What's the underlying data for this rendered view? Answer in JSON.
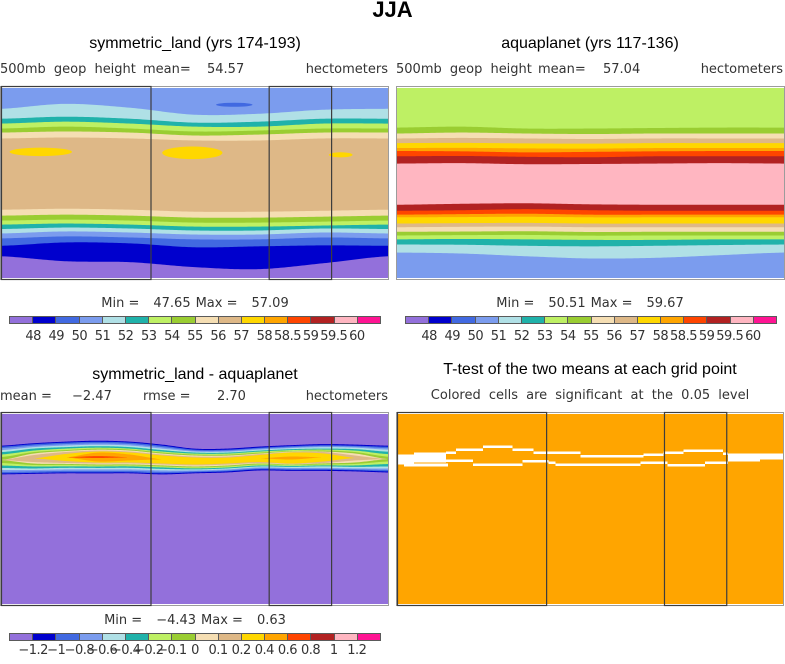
{
  "figure": {
    "title": "JJA"
  },
  "palette": [
    "#9370DB",
    "#0000CD",
    "#4169E1",
    "#7B9CEE",
    "#B0E0E6",
    "#20B2AA",
    "#BEF064",
    "#9ACD32",
    "#F5DEB3",
    "#DEB887",
    "#FFD700",
    "#FFA500",
    "#FF4500",
    "#B22222",
    "#FFB6C1",
    "#FF1493"
  ],
  "chart_data": [
    {
      "type": "heatmap",
      "title": "symmetric_land (yrs 174-193)",
      "variable": "500mb geop height",
      "mean_label": "mean=",
      "mean_value": "54.57",
      "units": "hectometers",
      "min_label": "Min =",
      "min_value": "47.65",
      "max_label": "Max =",
      "max_value": "57.09",
      "xlabel": "",
      "ylabel": "",
      "xlim": [
        0,
        360
      ],
      "ylim": [
        -90,
        90
      ],
      "colorbar": {
        "color_indices": [
          0,
          1,
          2,
          3,
          4,
          5,
          6,
          7,
          8,
          9,
          10,
          11,
          12,
          13,
          14,
          15
        ],
        "labels": [
          "48",
          "49",
          "50",
          "51",
          "52",
          "53",
          "54",
          "55",
          "56",
          "57",
          "58",
          "58.5",
          "59",
          "59.5",
          "60"
        ]
      },
      "land_boxes_lon": [
        [
          0,
          140
        ],
        [
          249,
          308
        ]
      ],
      "contour_bands": {
        "lon_samples": [
          0,
          60,
          120,
          180,
          240,
          300,
          360
        ],
        "band_color_indices": [
          3,
          4,
          5,
          6,
          7,
          8,
          9,
          8,
          7,
          6,
          5,
          4,
          3,
          2,
          1,
          0
        ],
        "boundaries_lat": [
          [
            70.3,
            75.0,
            71.3,
            64.7,
            65.6,
            69.4,
            70.3
          ],
          [
            60.9,
            62.8,
            60.9,
            57.2,
            58.1,
            60.9,
            60.9
          ],
          [
            56.3,
            58.1,
            56.3,
            53.4,
            53.4,
            56.3,
            56.3
          ],
          [
            51.6,
            53.4,
            51.6,
            48.8,
            49.7,
            51.6,
            51.6
          ],
          [
            47.8,
            48.8,
            47.8,
            45.0,
            45.9,
            47.8,
            47.8
          ],
          [
            42.2,
            43.1,
            42.2,
            40.3,
            40.3,
            42.2,
            42.2
          ],
          [
            -25.3,
            -24.4,
            -25.3,
            -27.2,
            -27.2,
            -26.3,
            -25.3
          ],
          [
            -30.9,
            -30.0,
            -30.9,
            -32.8,
            -32.8,
            -31.9,
            -30.9
          ],
          [
            -35.6,
            -34.7,
            -35.6,
            -37.5,
            -37.5,
            -36.6,
            -35.6
          ],
          [
            -39.4,
            -38.4,
            -39.4,
            -41.3,
            -41.3,
            -40.3,
            -39.4
          ],
          [
            -43.6,
            -42.2,
            -43.1,
            -45.0,
            -45.0,
            -43.1,
            -43.6
          ],
          [
            -47.8,
            -45.9,
            -46.9,
            -48.8,
            -48.8,
            -46.9,
            -47.8
          ],
          [
            -52.5,
            -50.6,
            -51.6,
            -53.4,
            -53.4,
            -51.6,
            -52.5
          ],
          [
            -59.5,
            -56.3,
            -57.2,
            -60.9,
            -60.0,
            -59.1,
            -59.5
          ],
          [
            -69.4,
            -74.1,
            -75.0,
            -79.7,
            -81.6,
            -76.0,
            -69.4
          ]
        ]
      },
      "blobs": [
        {
          "color_index": 2,
          "lon": 217,
          "lat": 74.1,
          "rlon": 17,
          "rlat": 1.9
        },
        {
          "color_index": 10,
          "lon": 37,
          "lat": 29.5,
          "rlon": 29,
          "rlat": 4.0
        },
        {
          "color_index": 10,
          "lon": 178,
          "lat": 28.6,
          "rlon": 28,
          "rlat": 6.0
        },
        {
          "color_index": 10,
          "lon": 316,
          "lat": 26.7,
          "rlon": 11,
          "rlat": 2.4
        }
      ]
    },
    {
      "type": "heatmap",
      "title": "aquaplanet (yrs 117-136)",
      "variable": "500mb geop height",
      "mean_label": "mean=",
      "mean_value": "57.04",
      "units": "hectometers",
      "min_label": "Min =",
      "min_value": "50.51",
      "max_label": "Max =",
      "max_value": "59.67",
      "xlabel": "",
      "ylabel": "",
      "xlim": [
        0,
        360
      ],
      "ylim": [
        -90,
        90
      ],
      "colorbar": {
        "color_indices": [
          0,
          1,
          2,
          3,
          4,
          5,
          6,
          7,
          8,
          9,
          10,
          11,
          12,
          13,
          14,
          15
        ],
        "labels": [
          "48",
          "49",
          "50",
          "51",
          "52",
          "53",
          "54",
          "55",
          "56",
          "57",
          "58",
          "58.5",
          "59",
          "59.5",
          "60"
        ]
      },
      "contour_bands": {
        "lon_samples": [
          0,
          60,
          120,
          180,
          240,
          300,
          360
        ],
        "band_color_indices": [
          6,
          7,
          8,
          9,
          10,
          11,
          12,
          13,
          14,
          13,
          12,
          11,
          10,
          9,
          8,
          7,
          6,
          5,
          4,
          3
        ],
        "boundaries_lat": [
          [
            52.5,
            53.4,
            51.6,
            51.6,
            52.1,
            52.5,
            52.5
          ],
          [
            46.9,
            47.8,
            46.9,
            46.4,
            46.9,
            46.9,
            46.9
          ],
          [
            42.2,
            42.7,
            42.2,
            41.7,
            42.2,
            42.2,
            42.2
          ],
          [
            37.8,
            38.0,
            37.5,
            37.3,
            37.8,
            37.8,
            37.8
          ],
          [
            33.1,
            33.3,
            32.8,
            32.6,
            33.1,
            33.1,
            33.1
          ],
          [
            30.3,
            30.0,
            29.0,
            29.5,
            30.0,
            30.3,
            30.3
          ],
          [
            25.3,
            25.6,
            24.8,
            24.4,
            25.3,
            25.3,
            25.3
          ],
          [
            18.4,
            18.8,
            17.8,
            18.0,
            18.4,
            18.8,
            18.4
          ],
          [
            -20.6,
            -19.7,
            -19.2,
            -20.2,
            -20.6,
            -20.6,
            -20.6
          ],
          [
            -26.3,
            -25.8,
            -24.8,
            -25.8,
            -26.3,
            -26.3,
            -26.3
          ],
          [
            -30.0,
            -29.5,
            -29.1,
            -30.0,
            -30.0,
            -30.0,
            -30.0
          ],
          [
            -32.5,
            -32.3,
            -32.0,
            -32.5,
            -32.5,
            -32.5,
            -32.5
          ],
          [
            -38.4,
            -38.0,
            -37.8,
            -38.4,
            -38.4,
            -38.4,
            -38.4
          ],
          [
            -41.9,
            -41.5,
            -41.3,
            -41.9,
            -41.9,
            -41.9,
            -41.9
          ],
          [
            -46.2,
            -46.0,
            -45.7,
            -46.4,
            -46.2,
            -46.2,
            -46.2
          ],
          [
            -49.7,
            -49.4,
            -49.2,
            -49.9,
            -49.7,
            -49.7,
            -49.7
          ],
          [
            -53.4,
            -53.0,
            -53.4,
            -53.9,
            -53.9,
            -53.4,
            -53.4
          ],
          [
            -58.3,
            -58.5,
            -59.5,
            -60.0,
            -59.5,
            -58.8,
            -58.3
          ],
          [
            -65.9,
            -66.8,
            -69.4,
            -71.5,
            -70.9,
            -68.4,
            -65.9
          ]
        ]
      }
    },
    {
      "type": "heatmap",
      "title": "symmetric_land - aquaplanet",
      "mean_label": "mean =",
      "mean_value": "−2.47",
      "rmse_label": "rmse =",
      "rmse_value": "2.70",
      "units": "hectometers",
      "min_label": "Min =",
      "min_value": "−4.43",
      "max_label": "Max =",
      "max_value": "0.63",
      "xlabel": "",
      "ylabel": "",
      "xlim": [
        0,
        360
      ],
      "ylim": [
        -90,
        90
      ],
      "colorbar": {
        "color_indices": [
          0,
          1,
          2,
          3,
          4,
          5,
          6,
          7,
          8,
          9,
          10,
          11,
          12,
          13,
          14,
          15
        ],
        "labels": [
          "−1.2",
          "−1",
          "−0.8",
          "−0.6",
          "−0.4",
          "−0.2",
          "−0.1",
          "0",
          "0.1",
          "0.2",
          "0.4",
          "0.6",
          "0.8",
          "1",
          "1.2"
        ]
      },
      "land_boxes_lon": [
        [
          0,
          140
        ],
        [
          249,
          308
        ]
      ],
      "ridge": {
        "lon_samples": [
          0,
          30,
          60,
          90,
          120,
          150,
          180,
          210,
          240,
          270,
          300,
          330,
          360
        ],
        "background_color_index": 0,
        "center_lat": [
          46.4,
          47.8,
          48.8,
          49.2,
          48.8,
          46.9,
          45.5,
          45.9,
          47.8,
          48.3,
          48.8,
          48.3,
          47.3
        ],
        "levels": [
          {
            "above": -1.2,
            "color_index": 1,
            "half_width_lat": [
              13.6,
              14.5,
              15.0,
              15.5,
              15.0,
              14.1,
              11.7,
              11.3,
              11.3,
              12.2,
              12.7,
              12.7,
              12.7
            ]
          },
          {
            "above": -1.0,
            "color_index": 2,
            "half_width_lat": [
              12.7,
              13.6,
              14.1,
              14.5,
              14.1,
              13.1,
              10.8,
              10.3,
              10.3,
              11.3,
              11.7,
              11.7,
              11.7
            ]
          },
          {
            "above": -0.8,
            "color_index": 3,
            "half_width_lat": [
              11.3,
              12.2,
              12.7,
              13.1,
              12.7,
              11.7,
              9.8,
              9.4,
              9.4,
              10.3,
              10.8,
              10.8,
              10.3
            ]
          },
          {
            "above": -0.6,
            "color_index": 4,
            "half_width_lat": [
              9.4,
              10.8,
              11.3,
              11.7,
              11.3,
              10.3,
              8.9,
              8.4,
              8.4,
              9.4,
              9.8,
              9.8,
              8.9
            ]
          },
          {
            "above": -0.4,
            "color_index": 5,
            "half_width_lat": [
              7.5,
              9.4,
              9.8,
              10.3,
              9.8,
              8.9,
              8.0,
              7.5,
              7.5,
              8.4,
              8.4,
              8.4,
              7.0
            ]
          },
          {
            "above": -0.2,
            "color_index": 6,
            "half_width_lat": [
              5.2,
              7.5,
              8.4,
              8.9,
              8.4,
              7.5,
              7.0,
              6.6,
              6.6,
              7.5,
              7.5,
              7.0,
              4.7
            ]
          },
          {
            "above": -0.1,
            "color_index": 7,
            "half_width_lat": [
              2.8,
              6.1,
              7.0,
              8.0,
              7.5,
              6.6,
              6.1,
              5.6,
              5.6,
              6.6,
              6.6,
              5.6,
              2.3
            ]
          },
          {
            "above": 0,
            "color_index": 8,
            "half_width_lat": [
              0,
              4.7,
              6.1,
              7.0,
              6.6,
              5.6,
              5.2,
              4.7,
              4.7,
              6.1,
              5.6,
              4.2,
              0
            ]
          },
          {
            "above": 0.1,
            "color_index": 9,
            "half_width_lat": [
              0,
              3.3,
              5.2,
              6.1,
              5.6,
              4.7,
              4.2,
              3.8,
              4.2,
              5.6,
              5.2,
              2.3,
              0
            ]
          },
          {
            "above": 0.2,
            "color_index": 10,
            "half_width_lat": [
              0,
              0,
              3.3,
              5.2,
              4.7,
              3.8,
              3.3,
              2.8,
              3.3,
              5.2,
              3.8,
              0,
              0
            ]
          },
          {
            "above": 0.4,
            "color_index": 11,
            "half_width_lat": [
              0,
              0,
              0,
              4.2,
              2.8,
              0,
              0,
              0,
              0,
              1.4,
              0,
              0,
              0
            ]
          },
          {
            "above": 0.6,
            "color_index": 12,
            "half_width_lat": [
              0,
              0,
              0,
              0.9,
              0,
              0,
              0,
              0,
              0,
              0,
              0,
              0,
              0
            ]
          }
        ]
      }
    },
    {
      "type": "heatmap",
      "title": "T-test of the two means at each grid point",
      "subtitle": "Colored cells are significant at the 0.05 level",
      "xlabel": "",
      "ylabel": "",
      "xlim": [
        0,
        360
      ],
      "ylim": [
        -90,
        90
      ],
      "significant_color": "#FFA500",
      "not_significant_color": "#FFFFFF",
      "land_boxes_lon": [
        [
          0,
          140
        ],
        [
          249,
          308
        ]
      ],
      "not_significant_cells": [
        [
          0,
          15.8,
          51.6,
          42.2
        ],
        [
          15.8,
          45.6,
          53.4,
          44.1
        ],
        [
          45.6,
          54.9,
          54.4,
          52.0
        ],
        [
          54.9,
          80.0,
          57.2,
          54.8
        ],
        [
          80.0,
          107.9,
          60.0,
          57.7
        ],
        [
          107.9,
          127.4,
          57.2,
          54.8
        ],
        [
          127.4,
          171.2,
          54.4,
          52.0
        ],
        [
          171.2,
          229.8,
          51.1,
          48.8
        ],
        [
          229.8,
          248.4,
          52.5,
          50.2
        ],
        [
          248.4,
          267.0,
          54.4,
          52.0
        ],
        [
          267.0,
          304.2,
          56.3,
          53.9
        ],
        [
          304.2,
          308.8,
          53.4,
          51.1
        ],
        [
          308.8,
          338.6,
          52.5,
          45.0
        ],
        [
          338.6,
          360,
          52.5,
          46.9
        ],
        [
          6.5,
          47.4,
          43.1,
          40.3
        ],
        [
          45.6,
          70.7,
          46.9,
          44.5
        ],
        [
          70.7,
          117.2,
          43.1,
          40.8
        ],
        [
          117.2,
          141.4,
          46.4,
          44.1
        ],
        [
          141.4,
          147.9,
          45.0,
          42.7
        ],
        [
          147.9,
          226.9,
          43.1,
          40.8
        ],
        [
          226.9,
          252.1,
          45.0,
          42.7
        ],
        [
          252.1,
          287.4,
          42.7,
          40.3
        ],
        [
          287.4,
          308.8,
          45.0,
          42.7
        ]
      ]
    }
  ]
}
